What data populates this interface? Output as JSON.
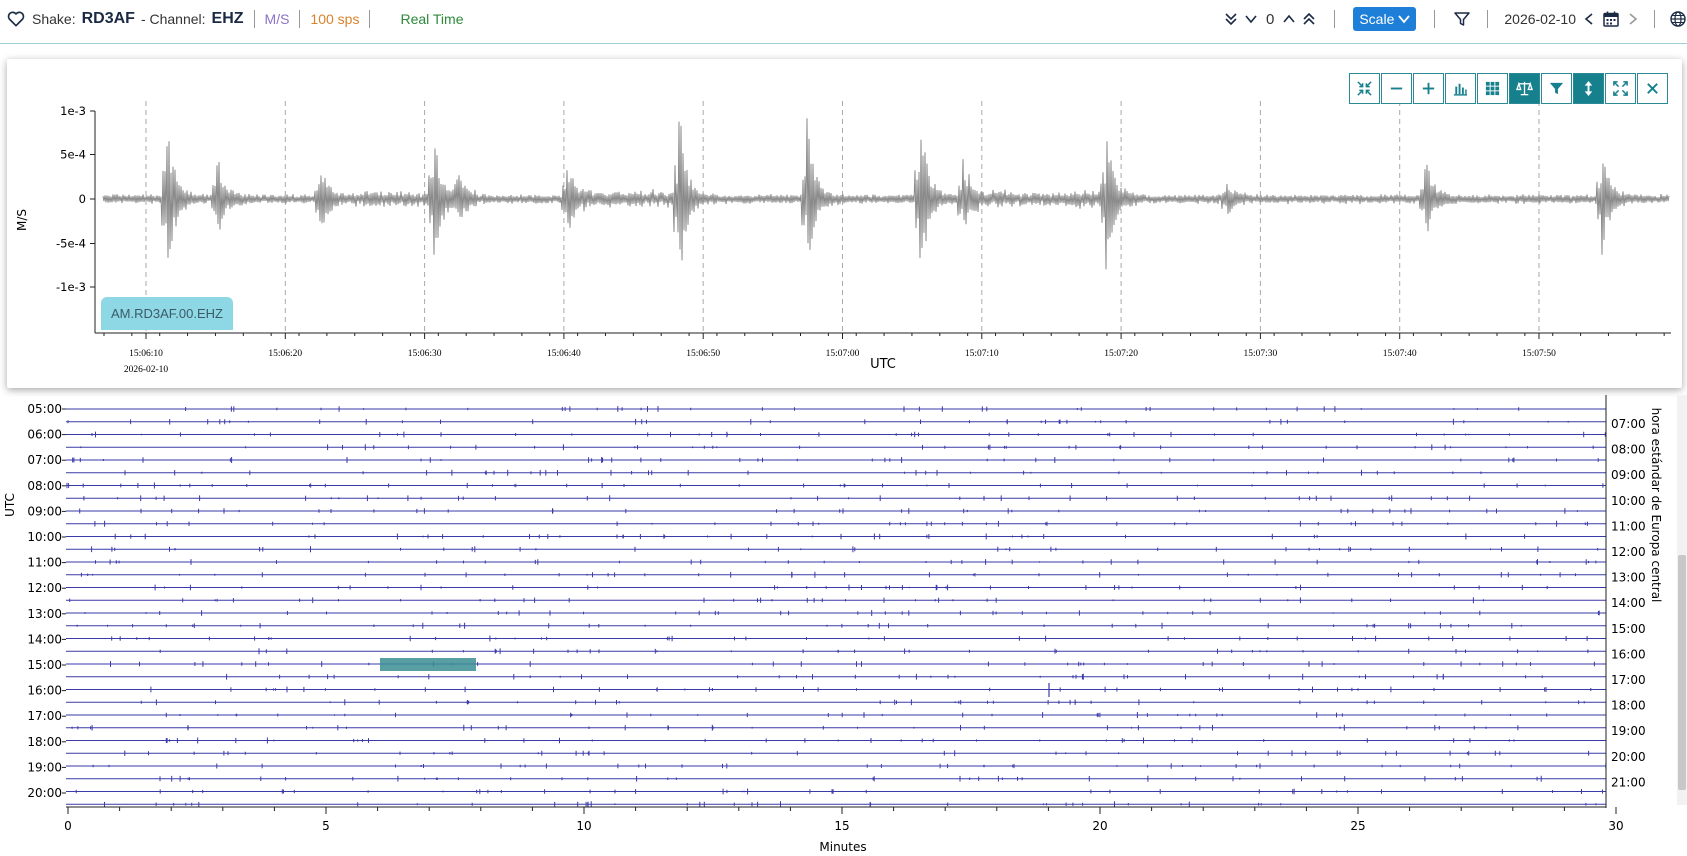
{
  "header": {
    "shake_label": "Shake:",
    "station": "RD3AF",
    "channel_label": "- Channel:",
    "channel": "EHZ",
    "unit": "M/S",
    "sps": "100 sps",
    "mode": "Real Time",
    "count": "0",
    "scale_label": "Scale",
    "date": "2026-02-10",
    "icons": [
      "heart-icon",
      "double-chevron-down-icon",
      "chevron-down-icon",
      "chevron-up-icon",
      "double-chevron-up-icon",
      "filter-icon",
      "chevron-left-icon",
      "calendar-icon",
      "chevron-right-icon",
      "globe-icon"
    ]
  },
  "waveform": {
    "ylabel": "M/S",
    "xlabel": "UTC",
    "yticks": [
      "1e-3",
      "5e-4",
      "0",
      "-5e-4",
      "-1e-3"
    ],
    "xticks": [
      "15:06:10",
      "15:06:20",
      "15:06:30",
      "15:06:40",
      "15:06:50",
      "15:07:00",
      "15:07:10",
      "15:07:20",
      "15:07:30",
      "15:07:40",
      "15:07:50"
    ],
    "first_date": "2026-02-10",
    "station_tag": "AM.RD3AF.00.EHZ",
    "trace_color": "#8a8a8a",
    "toolbar": [
      {
        "name": "compress-icon",
        "active": false
      },
      {
        "name": "minus-icon",
        "active": false
      },
      {
        "name": "plus-icon",
        "active": false
      },
      {
        "name": "histogram-icon",
        "active": false
      },
      {
        "name": "grid-icon",
        "active": false
      },
      {
        "name": "balance-scale-icon",
        "active": true
      },
      {
        "name": "filter-icon",
        "active": false
      },
      {
        "name": "vertical-arrows-icon",
        "active": true
      },
      {
        "name": "expand-icon",
        "active": false
      },
      {
        "name": "close-icon",
        "active": false
      }
    ]
  },
  "helicorder": {
    "left_axis_label": "UTC",
    "right_axis_label": "hora estándar de Europa central",
    "left_hours": [
      "05:00",
      "06:00",
      "07:00",
      "08:00",
      "09:00",
      "10:00",
      "11:00",
      "12:00",
      "13:00",
      "14:00",
      "15:00",
      "16:00",
      "17:00",
      "18:00",
      "19:00",
      "20:00"
    ],
    "right_hours": [
      "07:00",
      "08:00",
      "09:00",
      "10:00",
      "11:00",
      "12:00",
      "13:00",
      "14:00",
      "15:00",
      "16:00",
      "17:00",
      "18:00",
      "19:00",
      "20:00",
      "21:00"
    ],
    "xticks": [
      "0",
      "5",
      "10",
      "15",
      "20",
      "25",
      "30"
    ],
    "xlabel": "Minutes",
    "trace_color": "#3a3aa8",
    "highlight_color": "#3b8e94"
  }
}
